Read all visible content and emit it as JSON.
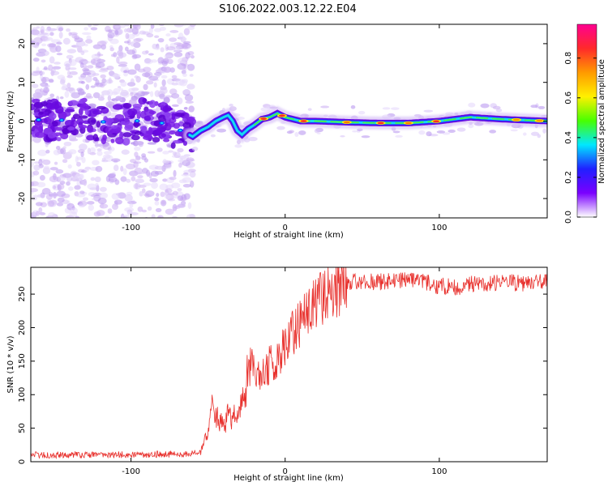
{
  "title": "S106.2022.003.12.22.E04",
  "colors": {
    "axis": "#000000",
    "snr_line": "#e8302c",
    "spectral_ridge": "#4b00e0",
    "colorbar_stops": [
      "#ff0090",
      "#ff2a2a",
      "#ff9a00",
      "#fff000",
      "#48ff00",
      "#00e8ff",
      "#2020ff",
      "#7a00ff",
      "#ffffff"
    ]
  },
  "chart_data": [
    {
      "type": "heatmap",
      "name": "spectrogram",
      "xlabel": "Height of straight line (km)",
      "ylabel": "Frequency (Hz)",
      "xlim": [
        -165,
        170
      ],
      "ylim": [
        -25,
        25
      ],
      "xticks": [
        -100,
        0,
        100
      ],
      "yticks": [
        -20,
        -10,
        0,
        10,
        20
      ],
      "grid": false,
      "ridge": {
        "x": [
          -165,
          -150,
          -130,
          -110,
          -90,
          -75,
          -65,
          -60,
          -55,
          -50,
          -45,
          -40,
          -37,
          -34,
          -31,
          -28,
          -24,
          -20,
          -15,
          -10,
          -5,
          0,
          10,
          20,
          40,
          60,
          80,
          100,
          120,
          140,
          170
        ],
        "y": [
          0.5,
          0,
          1,
          -1,
          0.5,
          -1,
          -3,
          -4,
          -2.5,
          -1.5,
          0,
          1,
          1.5,
          0,
          -2.5,
          -3.5,
          -2,
          -1,
          0.5,
          1,
          2,
          1,
          0,
          0,
          -0.3,
          -0.5,
          -0.5,
          0,
          1,
          0.5,
          0
        ]
      },
      "colorbar": {
        "label": "Normalized spectral amplitude",
        "ticks": [
          0.0,
          0.2,
          0.4,
          0.6,
          0.8
        ],
        "range": [
          0,
          0.97
        ]
      }
    },
    {
      "type": "line",
      "name": "snr",
      "xlabel": "Height of straight line (km)",
      "ylabel": "SNR (10 * v/v)",
      "xlim": [
        -165,
        170
      ],
      "ylim": [
        0,
        290
      ],
      "xticks": [
        -100,
        0,
        100
      ],
      "yticks": [
        0,
        50,
        100,
        150,
        200,
        250
      ],
      "grid": false,
      "series": [
        {
          "x": [
            -165,
            -120,
            -80,
            -60,
            -55,
            -50,
            -47,
            -45,
            -42,
            -40,
            -37,
            -35,
            -30,
            -25,
            -22,
            -20,
            -18,
            -15,
            -10,
            -5,
            0,
            5,
            10,
            15,
            20,
            25,
            30,
            35,
            40,
            60,
            80,
            90,
            100,
            110,
            120,
            140,
            160,
            170
          ],
          "values": [
            10,
            10,
            11,
            12,
            15,
            40,
            90,
            70,
            60,
            50,
            70,
            65,
            80,
            105,
            150,
            130,
            125,
            130,
            145,
            155,
            170,
            190,
            210,
            225,
            240,
            250,
            258,
            262,
            268,
            268,
            270,
            268,
            262,
            260,
            265,
            268,
            266,
            268
          ]
        }
      ]
    }
  ]
}
